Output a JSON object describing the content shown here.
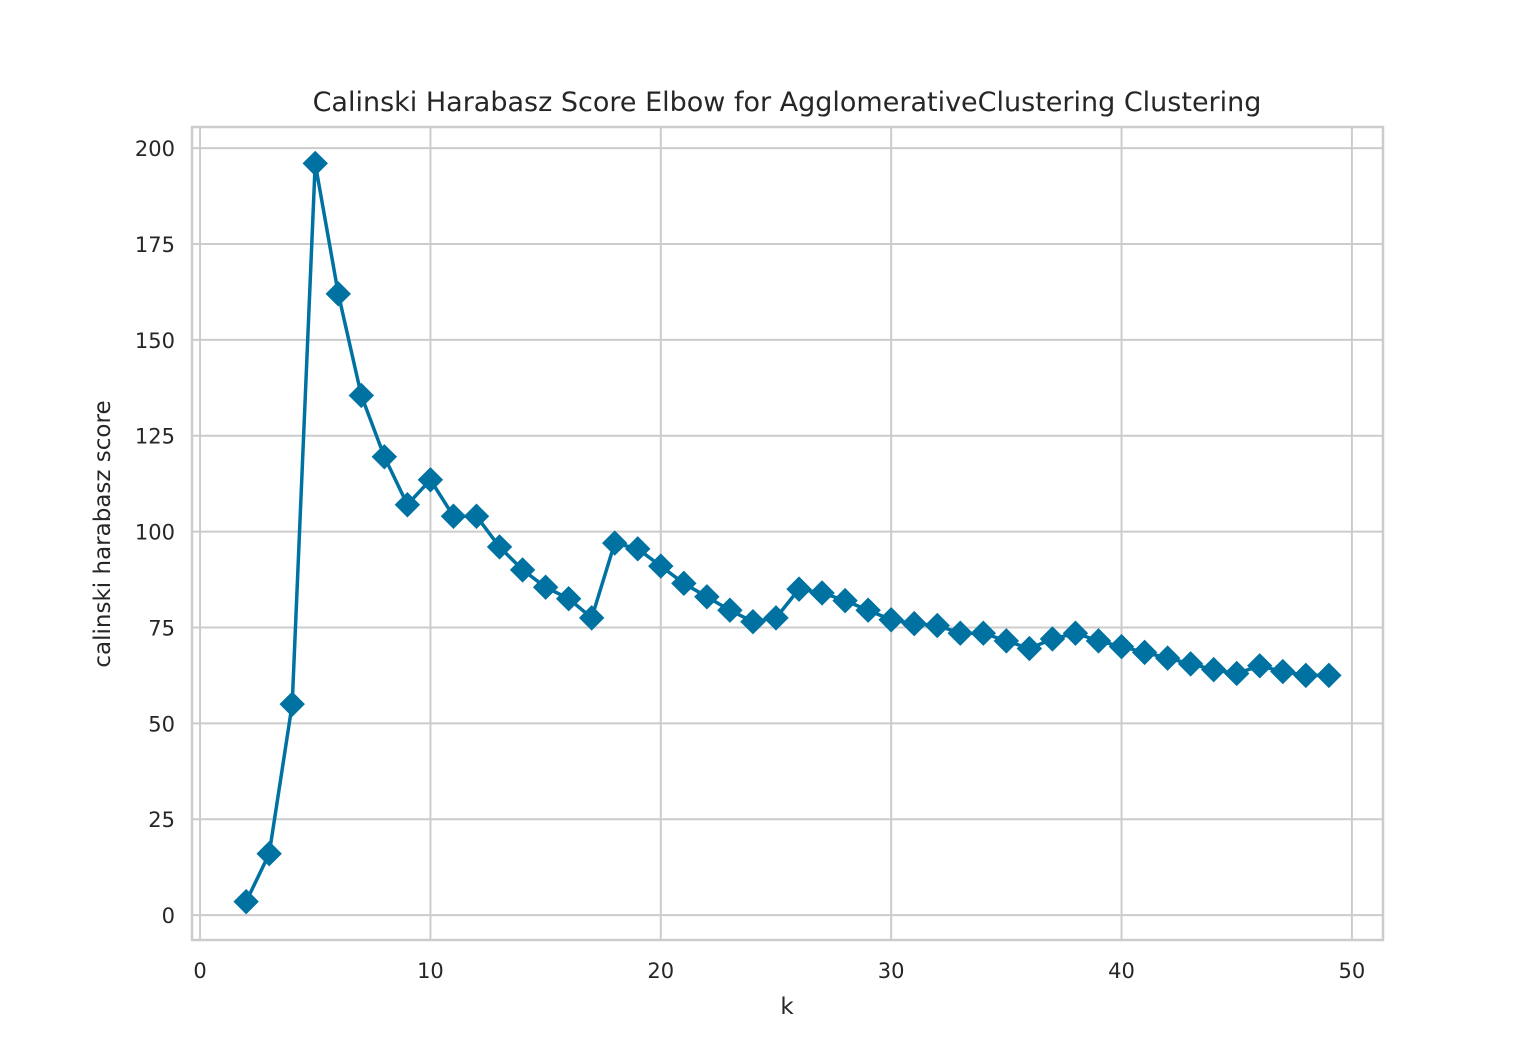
{
  "chart_data": {
    "type": "line",
    "title": "Calinski Harabasz Score Elbow for AgglomerativeClustering Clustering",
    "xlabel": "k",
    "ylabel": "calinski harabasz score",
    "xlim": [
      -0.35,
      51.35
    ],
    "ylim": [
      -6.5,
      205.5
    ],
    "xticks": [
      0,
      10,
      20,
      30,
      40,
      50
    ],
    "yticks": [
      0,
      25,
      50,
      75,
      100,
      125,
      150,
      175,
      200
    ],
    "grid": true,
    "marker": "diamond",
    "series_color": "#0072a2",
    "series": [
      {
        "x": [
          2,
          3,
          4,
          5,
          6,
          7,
          8,
          9,
          10,
          11,
          12,
          13,
          14,
          15,
          16,
          17,
          18,
          19,
          20,
          21,
          22,
          23,
          24,
          25,
          26,
          27,
          28,
          29,
          30,
          31,
          32,
          33,
          34,
          35,
          36,
          37,
          38,
          39,
          40,
          41,
          42,
          43,
          44,
          45,
          46,
          47,
          48,
          49
        ],
        "values": [
          3.5,
          16,
          55,
          196,
          162,
          135.5,
          119.5,
          107,
          113.5,
          104,
          104,
          96,
          90,
          85.5,
          82.5,
          77.5,
          97,
          95.5,
          91,
          86.5,
          83,
          79.5,
          76.5,
          77.5,
          85,
          84,
          82,
          79.5,
          77,
          76,
          75.5,
          73.5,
          73.5,
          71.5,
          69.5,
          72,
          73.5,
          71.5,
          70,
          68.5,
          67,
          65.5,
          64,
          63,
          65,
          63.5,
          62.5,
          62.5
        ]
      }
    ]
  }
}
